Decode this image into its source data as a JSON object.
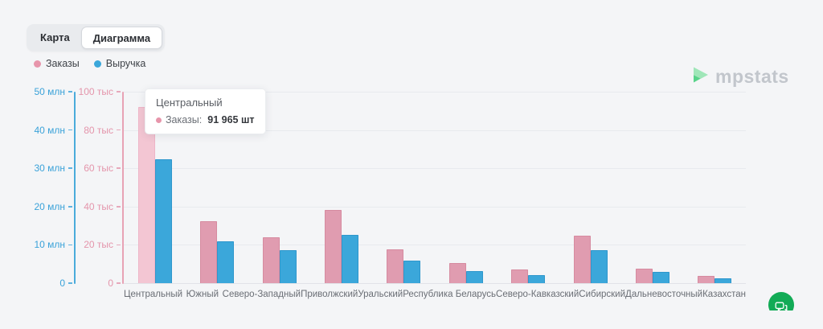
{
  "page": {
    "background": "#f4f5f7"
  },
  "tabs": {
    "map_label": "Карта",
    "diagram_label": "Диаграмма",
    "active_tab": "Диаграмма"
  },
  "legend": {
    "items": [
      {
        "label": "Заказы",
        "color": "#e795ab"
      },
      {
        "label": "Выручка",
        "color": "#3ba7da"
      }
    ]
  },
  "logo": {
    "text": "mpstats",
    "icon": "mpstats-play-icon",
    "icon_colors": [
      "#9fe6b8",
      "#57d389"
    ]
  },
  "tooltip": {
    "title": "Центральный",
    "series_label": "Заказы:",
    "value": "91 965 шт",
    "marker_color": "#e795ab"
  },
  "axes": {
    "left": {
      "color": "#3aa2d9",
      "ticks": [
        "50 млн",
        "40 млн",
        "30 млн",
        "20 млн",
        "10 млн",
        "0"
      ]
    },
    "right": {
      "color": "#e495ab",
      "ticks": [
        "100 тыс",
        "80 тыс",
        "60 тыс",
        "40 тыс",
        "20 тыс",
        "0"
      ]
    }
  },
  "chart_data": {
    "type": "bar",
    "categories": [
      "Центральный",
      "Южный",
      "Северо-Западный",
      "Приволжский",
      "Уральский",
      "Республика Беларусь",
      "Северо-Кавказский",
      "Сибирский",
      "Дальневосточный",
      "Казахстан"
    ],
    "series": [
      {
        "name": "Заказы",
        "unit": "шт",
        "axis": "right",
        "axis_max": 100000,
        "color": "#e09cb0",
        "highlight_color": "#f3c6d3",
        "highlighted_index": 0,
        "values": [
          91965,
          32200,
          23800,
          38200,
          17600,
          10600,
          7300,
          24700,
          7500,
          3800
        ]
      },
      {
        "name": "Выручка",
        "unit": "млн руб",
        "axis": "left",
        "axis_max": 50,
        "color": "#3ba7da",
        "values": [
          32.4,
          10.9,
          8.6,
          12.6,
          5.8,
          3.1,
          2.0,
          8.6,
          3.0,
          1.3
        ]
      }
    ],
    "left_axis_range_mln": [
      0,
      50
    ],
    "right_axis_range_tys": [
      0,
      100
    ],
    "grid": true,
    "legend_position": "top-left",
    "active_tooltip": {
      "category": "Центральный",
      "series": "Заказы",
      "value": "91 965 шт"
    }
  },
  "chat_button": {
    "color": "#12ab56",
    "icon": "chat-bubble-icon"
  }
}
